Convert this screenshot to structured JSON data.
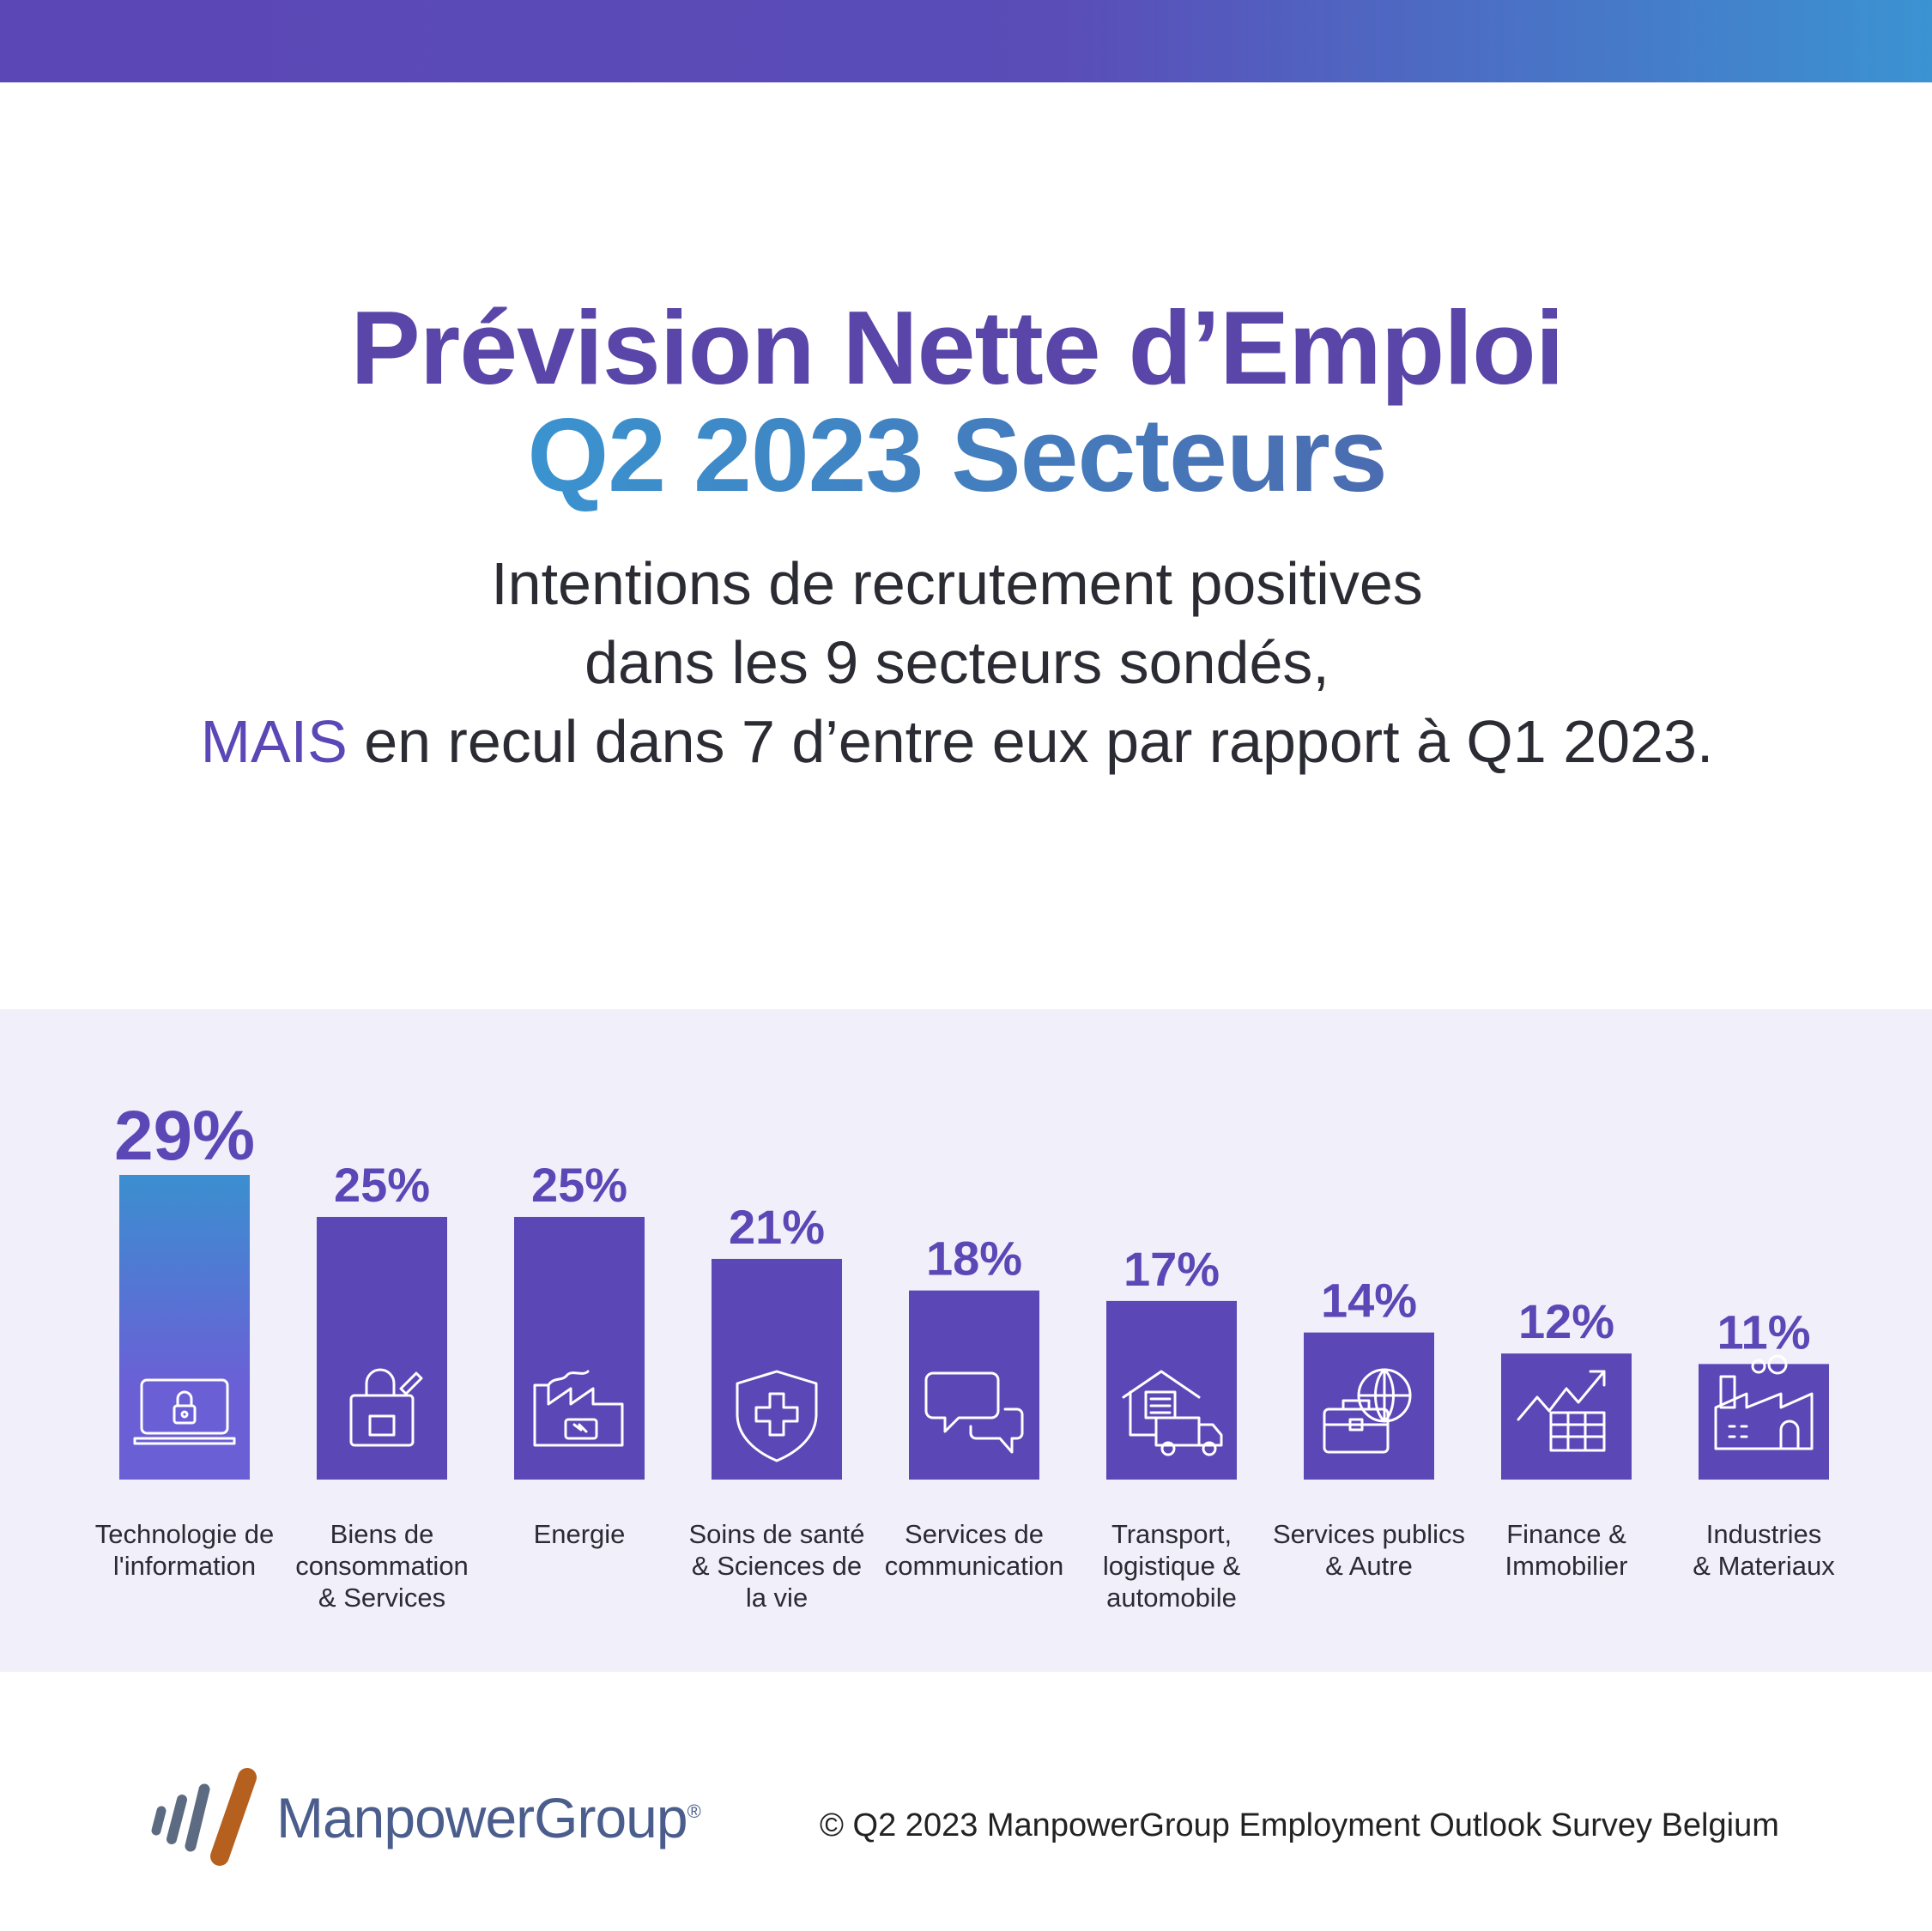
{
  "colors": {
    "purple": "#5b47b6",
    "blue": "#3b8fd0",
    "title_blue": "#3a93cf",
    "text": "#2b2b33",
    "panel": "#f1f0fa",
    "brand": "#4a5d8c",
    "logo_orange": "#b5601f",
    "logo_gray": "#5c6b82"
  },
  "header": {
    "title_line1": "Prévision Nette d’Emploi",
    "title_line2": "Q2 2023 Secteurs",
    "subtitle_line1": "Intentions de recrutement positives",
    "subtitle_line2": "dans les 9 secteurs sondés,",
    "subtitle_line3_emphasis": "MAIS",
    "subtitle_line3_rest": " en recul dans 7 d’entre eux par rapport à Q1 2023."
  },
  "chart_data": {
    "type": "bar",
    "title": "",
    "xlabel": "",
    "ylabel": "",
    "ylim": [
      0,
      29
    ],
    "grid": false,
    "categories": [
      [
        "Technologie de",
        "l'information"
      ],
      [
        "Biens de",
        "consommation",
        "& Services"
      ],
      [
        "Energie"
      ],
      [
        "Soins de santé",
        "& Sciences de",
        "la vie"
      ],
      [
        "Services de",
        "communication"
      ],
      [
        "Transport,",
        "logistique &",
        "automobile"
      ],
      [
        "Services publics",
        "& Autre"
      ],
      [
        "Finance &",
        "Immobilier"
      ],
      [
        "Industries",
        "& Materiaux"
      ]
    ],
    "values": [
      29,
      25,
      25,
      21,
      18,
      17,
      14,
      12,
      11
    ],
    "value_labels": [
      "29%",
      "25%",
      "25%",
      "21%",
      "18%",
      "17%",
      "14%",
      "12%",
      "11%"
    ],
    "icons": [
      "laptop-lock-icon",
      "shopping-bag-icon",
      "energy-factory-icon",
      "health-shield-icon",
      "chat-bubbles-icon",
      "warehouse-truck-icon",
      "globe-briefcase-icon",
      "finance-chart-icon",
      "industry-factory-icon"
    ]
  },
  "footer": {
    "brand": "ManpowerGroup",
    "registered": "®",
    "copyright": "© Q2 2023 ManpowerGroup Employment Outlook Survey Belgium"
  }
}
